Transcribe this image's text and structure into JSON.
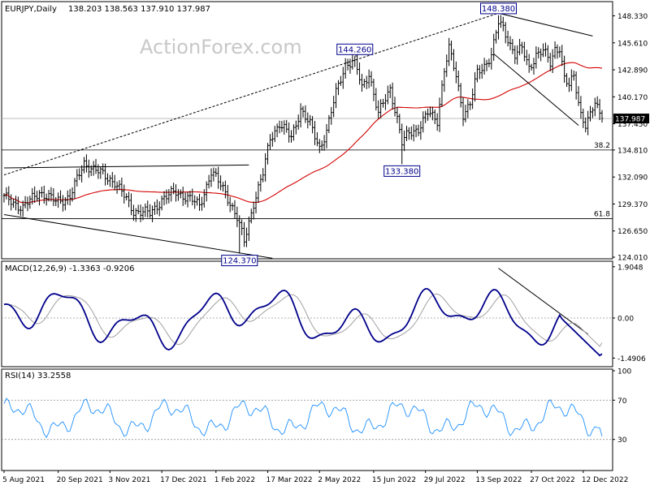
{
  "watermark": "ActionForex.com",
  "colors": {
    "price": "#000000",
    "sma": "#d40000",
    "macd": "#00008b",
    "signal": "#a0a0a0",
    "rsi": "#1e90ff",
    "labelBox": "#00008b",
    "lastBg": "#000000",
    "lastFg": "#ffffff"
  },
  "chart_data": [
    {
      "type": "line",
      "panel": "price",
      "title": "EURJPY,Daily",
      "ohlc": "138.203 138.563 137.910 137.987",
      "last_price": 137.987,
      "last_label": "137.987",
      "ylim": [
        124.01,
        149.6
      ],
      "yticks": [
        "148.330",
        "145.610",
        "142.890",
        "140.170",
        "137.450",
        "134.810",
        "132.090",
        "129.370",
        "126.650",
        "124.010"
      ],
      "ytick_values": [
        148.33,
        145.61,
        142.89,
        140.17,
        137.45,
        134.81,
        132.09,
        129.37,
        126.65,
        124.01
      ],
      "xticks": [
        "5 Aug 2021",
        "20 Sep 2021",
        "3 Nov 2021",
        "17 Dec 2021",
        "1 Feb 2022",
        "17 Mar 2022",
        "2 May 2022",
        "15 Jun 2022",
        "29 Jul 2022",
        "13 Sep 2022",
        "27 Oct 2022",
        "12 Dec 2022"
      ],
      "fib_levels": [
        {
          "label": "38.2",
          "value": 134.81
        },
        {
          "label": "61.8",
          "value": 127.9
        }
      ],
      "annotations": [
        {
          "label": "148.380",
          "bar": 210,
          "value": 148.38
        },
        {
          "label": "144.260",
          "bar": 149,
          "value": 144.26
        },
        {
          "label": "133.380",
          "bar": 169,
          "value": 133.38
        },
        {
          "label": "124.370",
          "bar": 100,
          "value": 124.37
        }
      ],
      "trendlines": [
        {
          "style": "solid",
          "p1": {
            "bar": 0,
            "value": 133.0
          },
          "p2": {
            "bar": 104,
            "value": 133.3
          }
        },
        {
          "style": "solid",
          "p1": {
            "bar": 0,
            "value": 128.3
          },
          "p2": {
            "bar": 114,
            "value": 123.9
          }
        },
        {
          "style": "dashed",
          "p1": {
            "bar": 0,
            "value": 132.3
          },
          "p2": {
            "bar": 210,
            "value": 148.6
          }
        },
        {
          "style": "solid",
          "p1": {
            "bar": 210,
            "value": 148.6
          },
          "p2": {
            "bar": 250,
            "value": 146.3
          }
        },
        {
          "style": "solid",
          "p1": {
            "bar": 208,
            "value": 144.5
          },
          "p2": {
            "bar": 244,
            "value": 137.3
          }
        }
      ],
      "moving_average": "SMA55"
    },
    {
      "type": "line",
      "panel": "macd",
      "title": "MACD(12,26,9) -1.3363 -0.9206",
      "ylim": [
        -1.75,
        2.05
      ],
      "yticks": [
        "1.9048",
        "0.00",
        "-1.4906"
      ],
      "ytick_values": [
        1.9048,
        0.0,
        -1.4906
      ],
      "trendline": {
        "p1": {
          "bar": 210,
          "value": 1.85
        },
        "p2": {
          "bar": 248,
          "value": -0.6
        }
      }
    },
    {
      "type": "line",
      "panel": "rsi",
      "title": "RSI(14) 33.2558",
      "ylim": [
        0,
        100
      ],
      "yticks": [
        "100",
        "70",
        "30"
      ],
      "ytick_values": [
        100,
        70,
        30
      ]
    }
  ]
}
